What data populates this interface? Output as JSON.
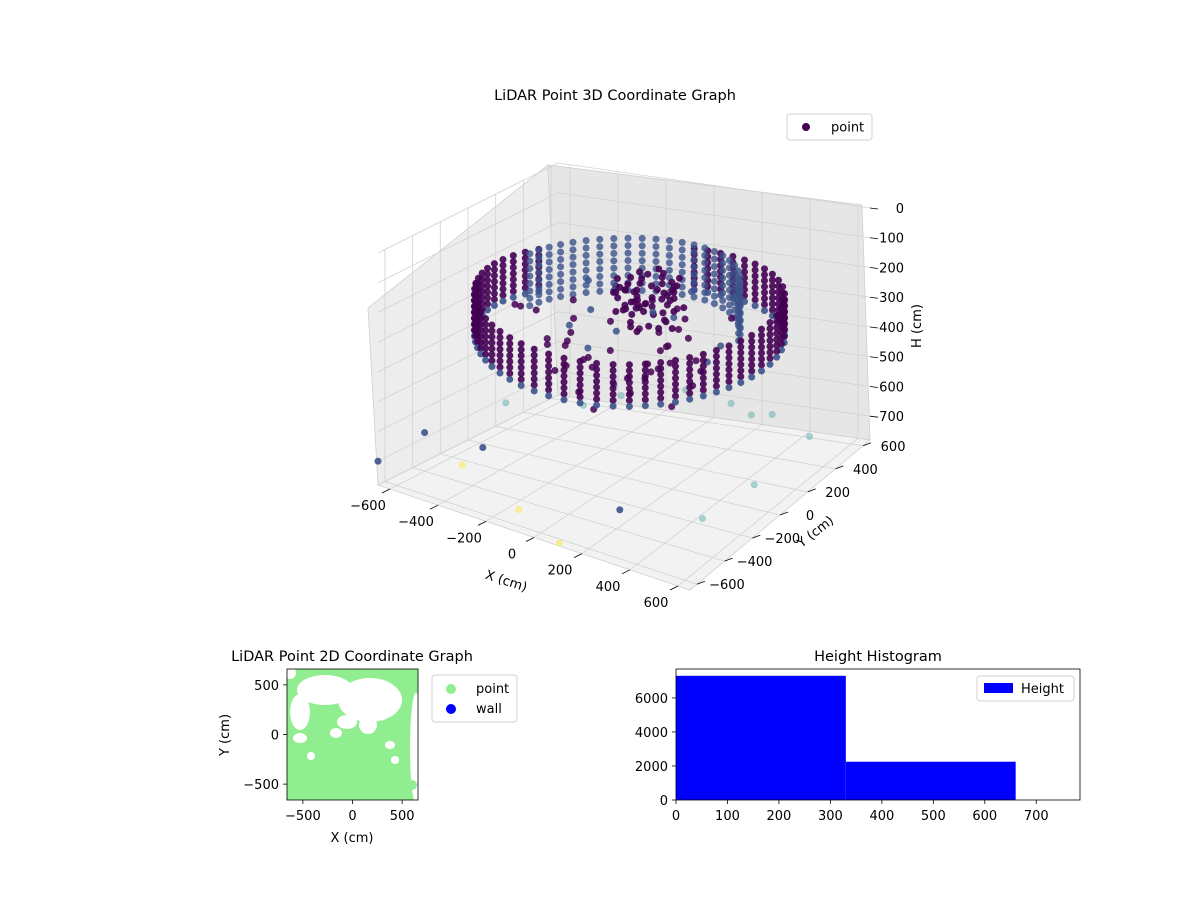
{
  "chart_data": [
    {
      "type": "scatter",
      "projection": "3d",
      "title": "LiDAR Point 3D Coordinate Graph",
      "xlabel": "X (cm)",
      "ylabel": "Y (cm)",
      "zlabel": "H (cm)",
      "x_ticks": [
        "−600",
        "−400",
        "−200",
        "0",
        "200",
        "400",
        "600"
      ],
      "y_ticks": [
        "−600",
        "−400",
        "−200",
        "0",
        "200",
        "400",
        "600"
      ],
      "z_ticks": [
        "0",
        "100",
        "200",
        "300",
        "400",
        "500",
        "600",
        "700"
      ],
      "xlim": [
        -650,
        650
      ],
      "ylim": [
        -650,
        650
      ],
      "zlim": [
        0,
        780
      ],
      "z_inverted": true,
      "legend": {
        "labels": [
          "point"
        ],
        "placement": "top-right"
      },
      "colormap": [
        "#440154",
        "#3b528b",
        "#21918c",
        "#5ec962",
        "#fde725"
      ],
      "series": [
        {
          "name": "point",
          "description_points": [
            {
              "x": 0,
              "y": -560,
              "h": 300
            },
            {
              "x": 200,
              "y": -520,
              "h": 300
            },
            {
              "x": 380,
              "y": -400,
              "h": 300
            },
            {
              "x": 520,
              "y": -200,
              "h": 300
            },
            {
              "x": 560,
              "y": 0,
              "h": 300
            },
            {
              "x": 520,
              "y": 200,
              "h": 300
            },
            {
              "x": 380,
              "y": 400,
              "h": 300
            },
            {
              "x": -200,
              "y": -520,
              "h": 300
            },
            {
              "x": -380,
              "y": -400,
              "h": 300
            },
            {
              "x": -520,
              "y": -200,
              "h": 300
            },
            {
              "x": -560,
              "y": 0,
              "h": 300
            },
            {
              "x": 0,
              "y": 0,
              "h": 200
            },
            {
              "x": -300,
              "y": 500,
              "h": 700
            },
            {
              "x": 300,
              "y": 550,
              "h": 700
            },
            {
              "x": 600,
              "y": -100,
              "h": 650
            }
          ]
        }
      ]
    },
    {
      "type": "scatter",
      "title": "LiDAR Point 2D Coordinate Graph",
      "xlabel": "X (cm)",
      "ylabel": "Y (cm)",
      "x_ticks": [
        "−500",
        "0",
        "500"
      ],
      "y_ticks": [
        "−500",
        "0",
        "500"
      ],
      "xlim": [
        -660,
        660
      ],
      "ylim": [
        -660,
        660
      ],
      "legend": {
        "labels": [
          "point",
          "wall"
        ],
        "placement": "right-outside"
      },
      "series": [
        {
          "name": "point",
          "color": "#90ee90"
        },
        {
          "name": "wall",
          "color": "#0000ff"
        }
      ]
    },
    {
      "type": "bar",
      "title": "Height Histogram",
      "x_ticks": [
        "0",
        "100",
        "200",
        "300",
        "400",
        "500",
        "600",
        "700"
      ],
      "y_ticks": [
        "0",
        "2000",
        "4000",
        "6000"
      ],
      "xlim": [
        0,
        785
      ],
      "ylim": [
        0,
        7700
      ],
      "legend": {
        "labels": [
          "Height"
        ],
        "placement": "top-right"
      },
      "bins": [
        {
          "from": 0,
          "to": 330,
          "count": 7300
        },
        {
          "from": 330,
          "to": 660,
          "count": 2250
        }
      ],
      "series": [
        {
          "name": "Height",
          "color": "#0000ff"
        }
      ]
    }
  ]
}
